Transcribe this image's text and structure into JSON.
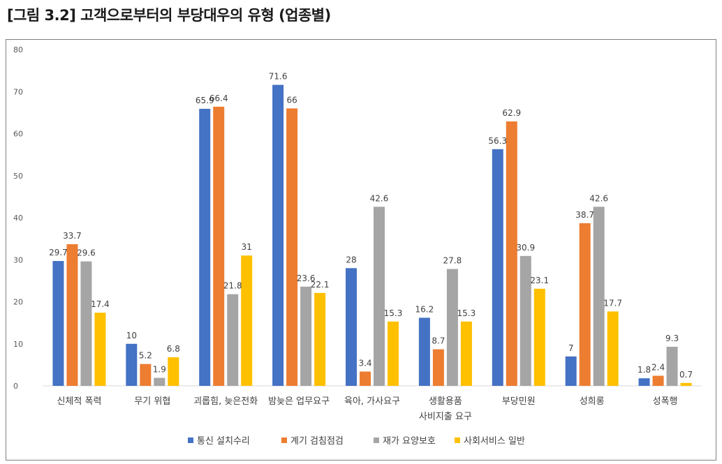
{
  "page": {
    "title": "[그림 3.2] 고객으로부터의 부당대우의 유형 (업종별)"
  },
  "chart_data": {
    "type": "bar",
    "categories": [
      [
        "신체적 폭력"
      ],
      [
        "무기 위협"
      ],
      [
        "괴롭힘, 늦은전화"
      ],
      [
        "밤늦은 업무요구"
      ],
      [
        "육아, 가사요구"
      ],
      [
        "생활용품",
        "사비지출 요구"
      ],
      [
        "부당민원"
      ],
      [
        "성희롱"
      ],
      [
        "성폭행"
      ]
    ],
    "series": [
      {
        "name": "통신 설치수리",
        "color": "#4472c4",
        "values": [
          29.7,
          10,
          65.9,
          71.6,
          28,
          16.2,
          56.3,
          7,
          1.8
        ]
      },
      {
        "name": "계기 검침점검",
        "color": "#ed7d31",
        "values": [
          33.7,
          5.2,
          66.4,
          66,
          3.4,
          8.7,
          62.9,
          38.7,
          2.4
        ]
      },
      {
        "name": "재가 요양보호",
        "color": "#a5a5a5",
        "values": [
          29.6,
          1.9,
          21.8,
          23.6,
          42.6,
          27.8,
          30.9,
          42.6,
          9.3
        ]
      },
      {
        "name": "사회서비스 일반",
        "color": "#ffc000",
        "values": [
          17.4,
          6.8,
          31,
          22.1,
          15.3,
          15.3,
          23.1,
          17.7,
          0.7
        ]
      }
    ],
    "y_ticks": [
      "0",
      "10",
      "20",
      "30",
      "40",
      "50",
      "60",
      "70",
      "80"
    ],
    "ylim": [
      0,
      80
    ],
    "grid": false,
    "legend_position": "bottom"
  }
}
